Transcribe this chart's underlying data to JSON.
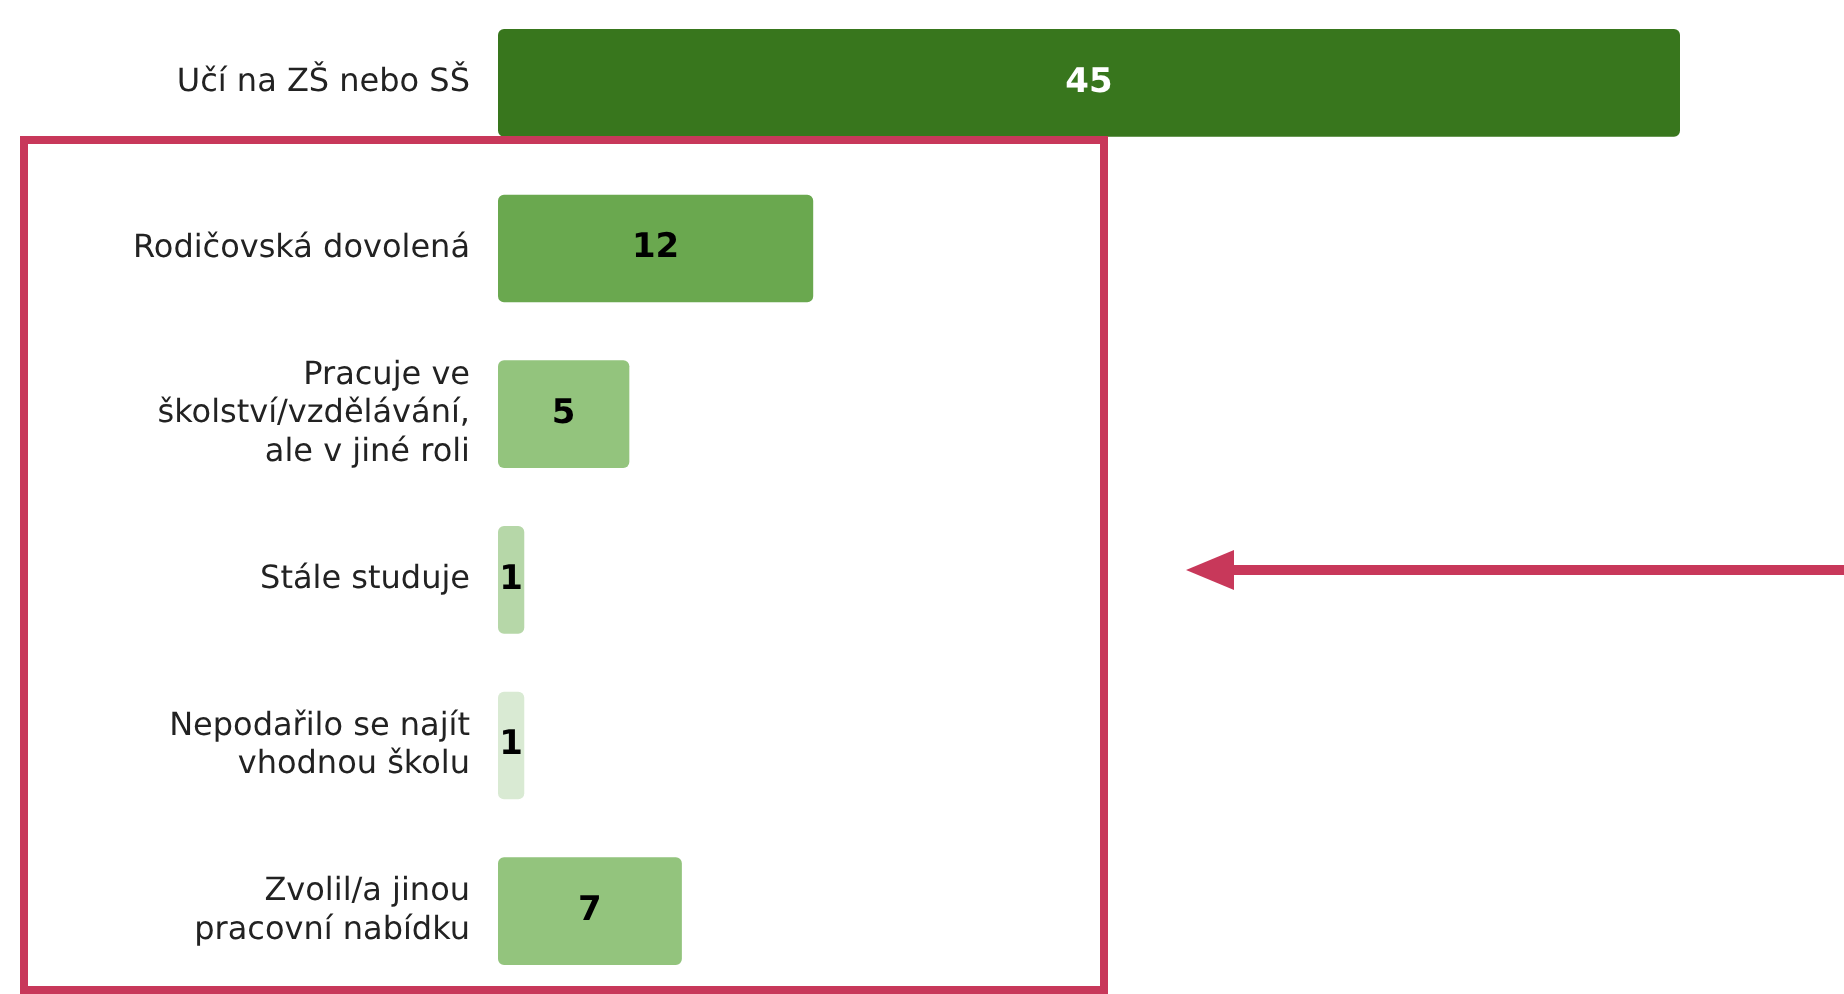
{
  "chart_data": {
    "type": "bar",
    "orientation": "horizontal",
    "categories": [
      "Učí na ZŠ nebo SŠ",
      "Rodičovská dovolená",
      "Pracuje ve\nškolství/vzdělávání,\nale v jiné roli",
      "Stále studuje",
      "Nepodařilo se najít\nvhodnou školu",
      "Zvolil/a jinou\npracovní nabídku"
    ],
    "values": [
      45,
      12,
      5,
      1,
      1,
      7
    ],
    "colors": [
      "#38761d",
      "#6aa84f",
      "#93c47d",
      "#b6d7a8",
      "#d9ead3",
      "#93c47d"
    ],
    "data_labels": true,
    "legend": false
  }
}
